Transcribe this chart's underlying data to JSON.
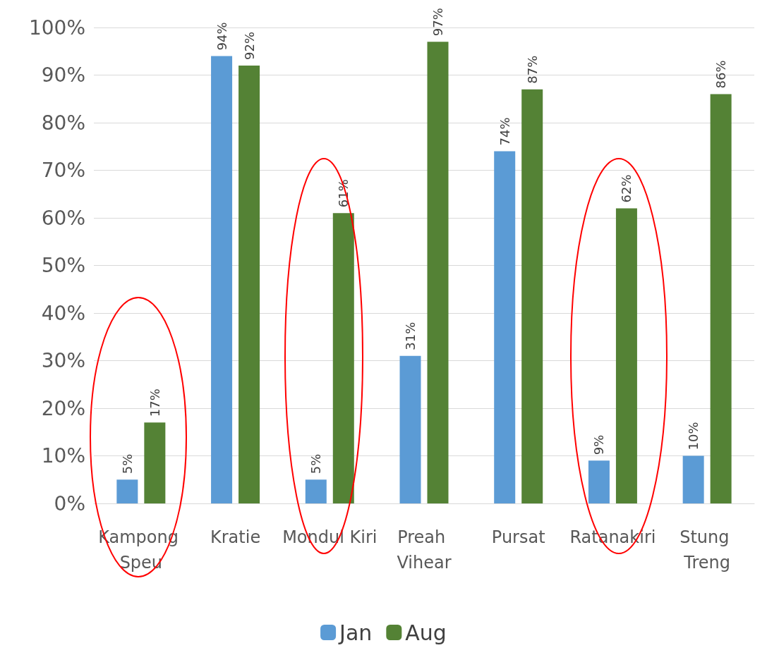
{
  "chart_data": {
    "type": "bar",
    "categories": [
      "Kampong Speu",
      "Kratie",
      "Mondul Kiri",
      "Preah Vihear",
      "Pursat",
      "Ratanakiri",
      "Stung Treng"
    ],
    "series": [
      {
        "name": "Jan",
        "color": "#5b9bd5",
        "values": [
          5,
          94,
          5,
          31,
          74,
          9,
          10
        ],
        "value_labels": [
          "5%",
          "94%",
          "5%",
          "31%",
          "74%",
          "9%",
          "10%"
        ]
      },
      {
        "name": "Aug",
        "color": "#548235",
        "values": [
          17,
          92,
          61,
          97,
          87,
          62,
          86
        ],
        "value_labels": [
          "17%",
          "92%",
          "61%",
          "97%",
          "87%",
          "62%",
          "86%"
        ]
      }
    ],
    "ylim": [
      0,
      100
    ],
    "yticks": [
      {
        "value": 0,
        "label": "0%"
      },
      {
        "value": 10,
        "label": "10%"
      },
      {
        "value": 20,
        "label": "20%"
      },
      {
        "value": 30,
        "label": "30%"
      },
      {
        "value": 40,
        "label": "40%"
      },
      {
        "value": 50,
        "label": "50%"
      },
      {
        "value": 60,
        "label": "60%"
      },
      {
        "value": 70,
        "label": "70%"
      },
      {
        "value": 80,
        "label": "80%"
      },
      {
        "value": 90,
        "label": "90%"
      },
      {
        "value": 100,
        "label": "100%"
      }
    ],
    "grid": "y",
    "legend": "bottom"
  }
}
